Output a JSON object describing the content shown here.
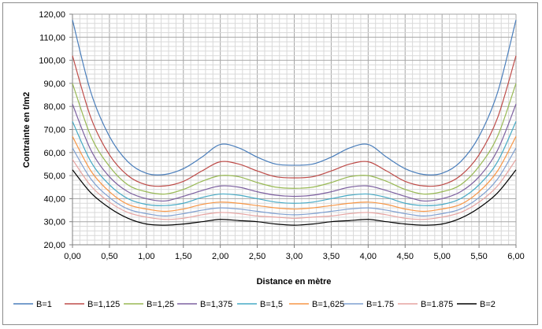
{
  "chart_data": {
    "type": "line",
    "title": "",
    "xlabel": "Distance en mètre",
    "ylabel": "Contrainte en t/m2",
    "xlim": [
      0,
      6
    ],
    "ylim": [
      20,
      120
    ],
    "grid": true,
    "legend_position": "bottom",
    "x_ticks": [
      "0,00",
      "0,50",
      "1,00",
      "1,50",
      "2,00",
      "2,50",
      "3,00",
      "3,50",
      "4,00",
      "4,50",
      "5,00",
      "5,50",
      "6,00"
    ],
    "y_ticks": [
      "20,00",
      "30,00",
      "40,00",
      "50,00",
      "60,00",
      "70,00",
      "80,00",
      "90,00",
      "100,00",
      "110,00",
      "120,00"
    ],
    "x": [
      0,
      0.25,
      0.5,
      0.75,
      1.0,
      1.25,
      1.5,
      1.75,
      2.0,
      2.25,
      2.5,
      2.75,
      3.0,
      3.25,
      3.5,
      3.75,
      4.0,
      4.25,
      4.5,
      4.75,
      5.0,
      5.25,
      5.5,
      5.75,
      6.0
    ],
    "series": [
      {
        "name": "B=1",
        "color": "#4a7ebb",
        "values": [
          117.5,
          86,
          67,
          56,
          51,
          50.5,
          53,
          58,
          63.5,
          62,
          58,
          55,
          54.5,
          55,
          58,
          62,
          63.5,
          58,
          53,
          50.5,
          51,
          56,
          67,
          86,
          117.5
        ]
      },
      {
        "name": "B=1,125",
        "color": "#be4b48",
        "values": [
          102,
          75,
          59,
          50,
          46,
          45.5,
          47.5,
          52,
          56,
          55,
          52,
          49.5,
          49,
          49.5,
          52,
          55,
          56,
          52,
          47.5,
          45.5,
          46,
          50,
          59,
          75,
          102
        ]
      },
      {
        "name": "B=1,25",
        "color": "#98b954",
        "values": [
          90,
          67,
          54,
          46,
          43,
          42,
          44,
          47.5,
          50,
          49.5,
          47,
          45,
          44.5,
          45,
          47,
          49.5,
          50,
          47.5,
          44,
          42,
          43,
          46,
          54,
          67,
          90
        ]
      },
      {
        "name": "B=1,375",
        "color": "#7d60a0",
        "values": [
          81,
          61,
          49.5,
          43,
          40,
          39,
          41,
          43.5,
          45.5,
          45,
          43,
          41.5,
          41,
          41.5,
          43,
          45,
          45.5,
          43.5,
          41,
          39,
          40,
          43,
          49.5,
          61,
          81
        ]
      },
      {
        "name": "B=1,5",
        "color": "#46aac5",
        "values": [
          73.5,
          56,
          46,
          40,
          37.5,
          37,
          38,
          40.5,
          42,
          41.5,
          40,
          38.5,
          38,
          38.5,
          40,
          41.5,
          42,
          40.5,
          38,
          37,
          37.5,
          40,
          46,
          56,
          73.5
        ]
      },
      {
        "name": "B=1,625",
        "color": "#f79646",
        "values": [
          67,
          52,
          43,
          37.5,
          35.5,
          34.5,
          35.5,
          37.5,
          38.5,
          38,
          37,
          36,
          35.5,
          36,
          37,
          38,
          38.5,
          37.5,
          35.5,
          34.5,
          35.5,
          37.5,
          43,
          52,
          67
        ]
      },
      {
        "name": "B=1.75",
        "color": "#7f9fd0",
        "values": [
          62,
          48.5,
          40.5,
          35.5,
          33.5,
          32.5,
          33.5,
          35,
          36,
          35.5,
          34.5,
          33.5,
          33,
          33.5,
          34.5,
          35.5,
          36,
          35,
          33.5,
          32.5,
          33.5,
          35.5,
          40.5,
          48.5,
          62
        ]
      },
      {
        "name": "B=1.875",
        "color": "#e6a3a1",
        "values": [
          57,
          45.5,
          38.5,
          34,
          32,
          31,
          31.5,
          33,
          34,
          33.5,
          32.5,
          32,
          31.5,
          32,
          32.5,
          33.5,
          34,
          33,
          31.5,
          31,
          32,
          34,
          38.5,
          45.5,
          57
        ]
      },
      {
        "name": "B=2",
        "color": "#000000",
        "values": [
          52.5,
          42.5,
          36,
          31.5,
          29,
          28.5,
          29,
          30,
          31,
          30.5,
          30,
          29,
          28.5,
          29,
          30,
          30.5,
          31,
          30,
          29,
          28.5,
          29,
          31.5,
          36,
          42.5,
          52.5
        ]
      }
    ]
  }
}
